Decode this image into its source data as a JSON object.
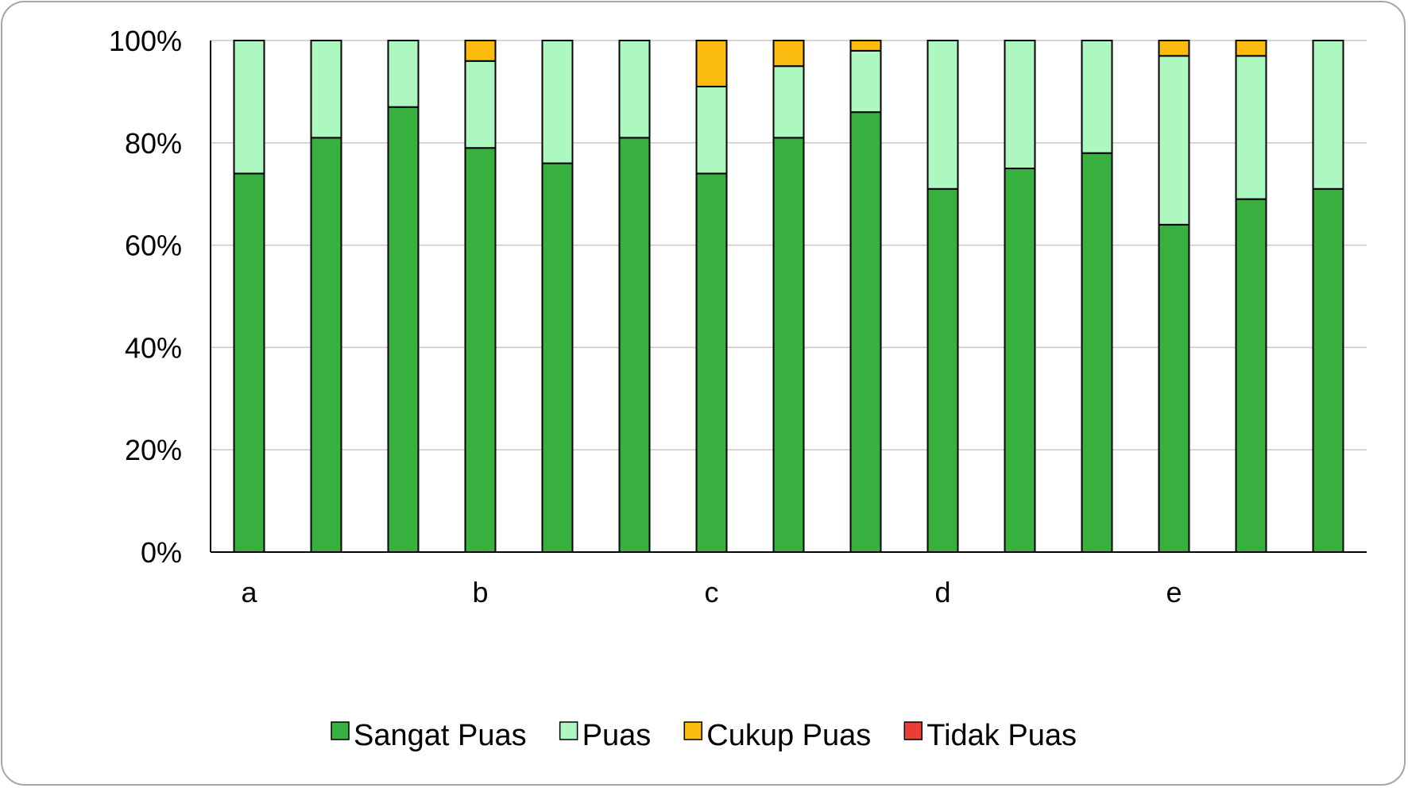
{
  "chart_data": {
    "type": "bar",
    "stacked": true,
    "percent_axis": true,
    "categories": [
      "a",
      "",
      "",
      "b",
      "",
      "",
      "c",
      "",
      "",
      "d",
      "",
      "",
      "e",
      "",
      ""
    ],
    "y_ticks": [
      "0%",
      "20%",
      "40%",
      "60%",
      "80%",
      "100%"
    ],
    "ylim": [
      0,
      100
    ],
    "grid": true,
    "legend_position": "bottom",
    "series": [
      {
        "name": "Sangat Puas",
        "color": "#38b03f",
        "values": [
          74,
          81,
          87,
          79,
          76,
          81,
          74,
          81,
          86,
          71,
          75,
          78,
          64,
          69,
          71
        ]
      },
      {
        "name": "Puas",
        "color": "#adf7c1",
        "values": [
          26,
          19,
          13,
          17,
          24,
          19,
          17,
          14,
          12,
          29,
          25,
          22,
          33,
          28,
          29
        ]
      },
      {
        "name": "Cukup Puas",
        "color": "#fbbc0f",
        "values": [
          0,
          0,
          0,
          4,
          0,
          0,
          9,
          5,
          2,
          0,
          0,
          0,
          3,
          3,
          0
        ]
      },
      {
        "name": "Tidak Puas",
        "color": "#e93d35",
        "values": [
          0,
          0,
          0,
          0,
          0,
          0,
          0,
          0,
          0,
          0,
          0,
          0,
          0,
          0,
          0
        ]
      }
    ]
  }
}
